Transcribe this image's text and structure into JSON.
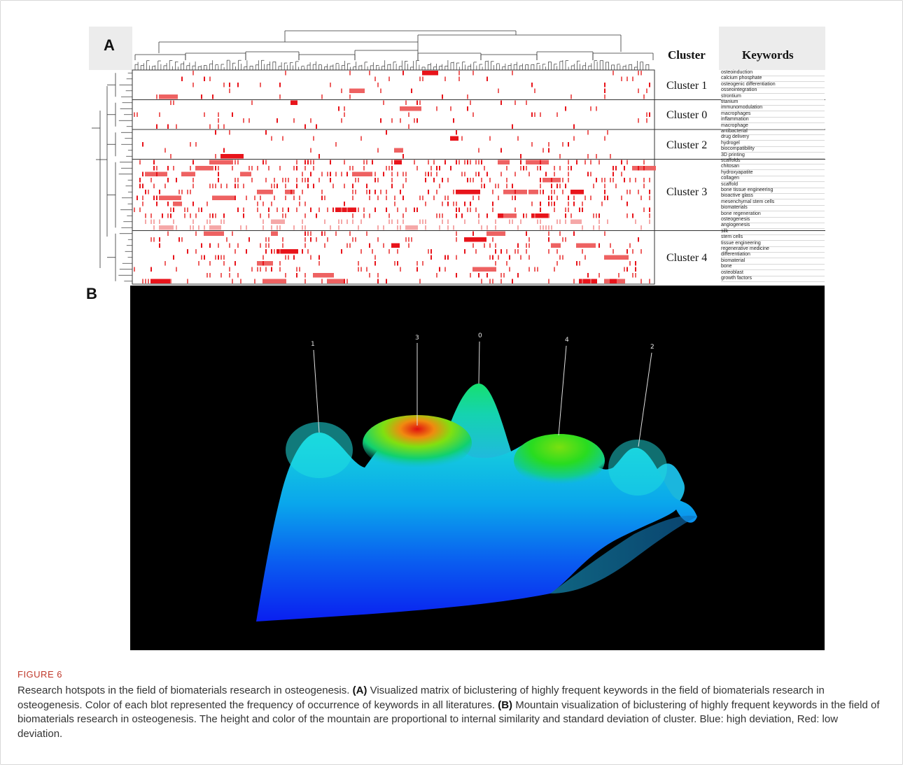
{
  "panel_a": {
    "label": "A",
    "header_cluster": "Cluster",
    "header_keywords": "Keywords",
    "clusters": [
      {
        "label": "Cluster 1",
        "keywords": [
          "osteoinduction",
          "calcium phosphate",
          "osteogenic differentiation",
          "osseointegration",
          "strontium"
        ]
      },
      {
        "label": "Cluster 0",
        "keywords": [
          "titanium",
          "immunomodulation",
          "macrophages",
          "inflammation",
          "macrophage"
        ]
      },
      {
        "label": "Cluster 2",
        "keywords": [
          "antibacterial",
          "drug delivery",
          "hydrogel",
          "biocompatibility",
          "3D printing"
        ]
      },
      {
        "label": "Cluster 3",
        "keywords": [
          "scaffolds",
          "chitosan",
          "hydroxyapatite",
          "collagen",
          "scaffold",
          "bone tissue engineering",
          "bioactive glass",
          "mesenchymal stem cells",
          "biomaterials",
          "bone regeneration",
          "osteogenesis",
          "angiogenesis"
        ]
      },
      {
        "label": "Cluster 4",
        "keywords": [
          "silk",
          "stem cells",
          "tissue engineering",
          "regenerative medicine",
          "differentiation",
          "biomaterial",
          "bone",
          "osteoblast",
          "growth factors"
        ]
      }
    ],
    "colors": {
      "high": "#e8141b",
      "mid": "#ee6262",
      "low": "#f5a8a8"
    }
  },
  "panel_b": {
    "label": "B",
    "peaks": [
      "1",
      "3",
      "0",
      "4",
      "2"
    ]
  },
  "caption": {
    "figure_label": "FIGURE 6",
    "intro": "Research hotspots in the field of biomaterials research in osteogenesis.",
    "part_a_label": "(A)",
    "part_a_text": "Visualized matrix of biclustering of highly frequent keywords in the field of biomaterials research in osteogenesis. Color of each blot represented the frequency of occurrence of keywords in all literatures.",
    "part_b_label": "(B)",
    "part_b_text": "Mountain visualization of biclustering of highly frequent keywords in the field of biomaterials research in osteogenesis. The height and color of the mountain are proportional to internal similarity and standard deviation of cluster. Blue: high deviation, Red: low deviation."
  }
}
